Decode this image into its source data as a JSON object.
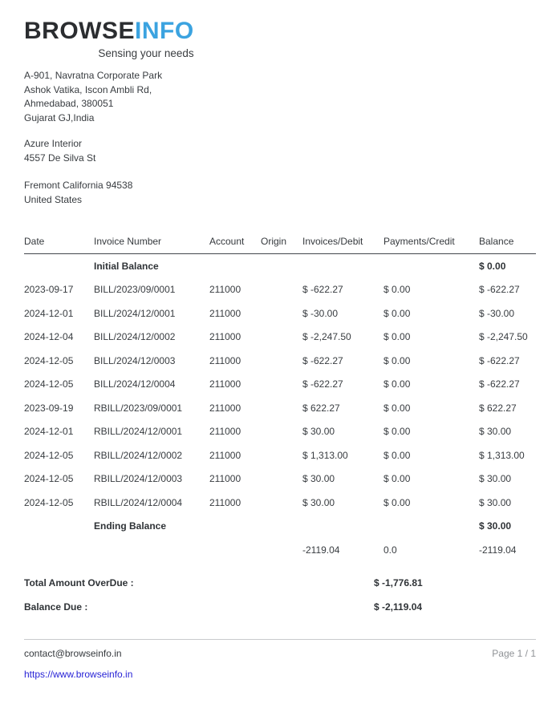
{
  "logo": {
    "brand_part_dark": "BROWSE",
    "brand_part_blue": "INFO",
    "tagline": "Sensing your needs"
  },
  "company_address": {
    "line1": "A-901, Navratna Corporate Park",
    "line2": "Ashok Vatika, Iscon Ambli Rd,",
    "line3": "Ahmedabad, 380051",
    "line4": "Gujarat GJ,India"
  },
  "customer": {
    "name": "Azure Interior",
    "street": "4557 De Silva St",
    "city_line": "Fremont California 94538",
    "country": "United States"
  },
  "table": {
    "headers": [
      "Date",
      "Invoice Number",
      "Account",
      "Origin",
      "Invoices/Debit",
      "Payments/Credit",
      "Balance"
    ],
    "initial_row": {
      "label": "Initial Balance",
      "balance": "$ 0.00"
    },
    "rows": [
      {
        "date": "2023-09-17",
        "invoice": "BILL/2023/09/0001",
        "account": "211000",
        "origin": "",
        "debit": "$ -622.27",
        "credit": "$ 0.00",
        "balance": "$ -622.27"
      },
      {
        "date": "2024-12-01",
        "invoice": "BILL/2024/12/0001",
        "account": "211000",
        "origin": "",
        "debit": "$ -30.00",
        "credit": "$ 0.00",
        "balance": "$ -30.00"
      },
      {
        "date": "2024-12-04",
        "invoice": "BILL/2024/12/0002",
        "account": "211000",
        "origin": "",
        "debit": "$ -2,247.50",
        "credit": "$ 0.00",
        "balance": "$ -2,247.50"
      },
      {
        "date": "2024-12-05",
        "invoice": "BILL/2024/12/0003",
        "account": "211000",
        "origin": "",
        "debit": "$ -622.27",
        "credit": "$ 0.00",
        "balance": "$ -622.27"
      },
      {
        "date": "2024-12-05",
        "invoice": "BILL/2024/12/0004",
        "account": "211000",
        "origin": "",
        "debit": "$ -622.27",
        "credit": "$ 0.00",
        "balance": "$ -622.27"
      },
      {
        "date": "2023-09-19",
        "invoice": "RBILL/2023/09/0001",
        "account": "211000",
        "origin": "",
        "debit": "$ 622.27",
        "credit": "$ 0.00",
        "balance": "$ 622.27"
      },
      {
        "date": "2024-12-01",
        "invoice": "RBILL/2024/12/0001",
        "account": "211000",
        "origin": "",
        "debit": "$ 30.00",
        "credit": "$ 0.00",
        "balance": "$ 30.00"
      },
      {
        "date": "2024-12-05",
        "invoice": "RBILL/2024/12/0002",
        "account": "211000",
        "origin": "",
        "debit": "$ 1,313.00",
        "credit": "$ 0.00",
        "balance": "$ 1,313.00"
      },
      {
        "date": "2024-12-05",
        "invoice": "RBILL/2024/12/0003",
        "account": "211000",
        "origin": "",
        "debit": "$ 30.00",
        "credit": "$ 0.00",
        "balance": "$ 30.00"
      },
      {
        "date": "2024-12-05",
        "invoice": "RBILL/2024/12/0004",
        "account": "211000",
        "origin": "",
        "debit": "$ 30.00",
        "credit": "$ 0.00",
        "balance": "$ 30.00"
      }
    ],
    "ending_row": {
      "label": "Ending Balance",
      "balance": "$ 30.00"
    },
    "totals_row": {
      "debit": "-2119.04",
      "credit": "0.0",
      "balance": "-2119.04"
    }
  },
  "summary": {
    "overdue_label": "Total Amount OverDue :",
    "overdue_value": "$ -1,776.81",
    "balance_due_label": "Balance Due :",
    "balance_due_value": "$ -2,119.04"
  },
  "footer": {
    "email": "contact@browseinfo.in",
    "page_indicator": "Page 1 / 1",
    "website": "https://www.browseinfo.in"
  },
  "colors": {
    "brand_dark": "#2b2d30",
    "brand_blue": "#3ba3e0",
    "link_blue": "#2823d6",
    "muted_gray": "#8f9296",
    "header_rule": "#43474c"
  }
}
